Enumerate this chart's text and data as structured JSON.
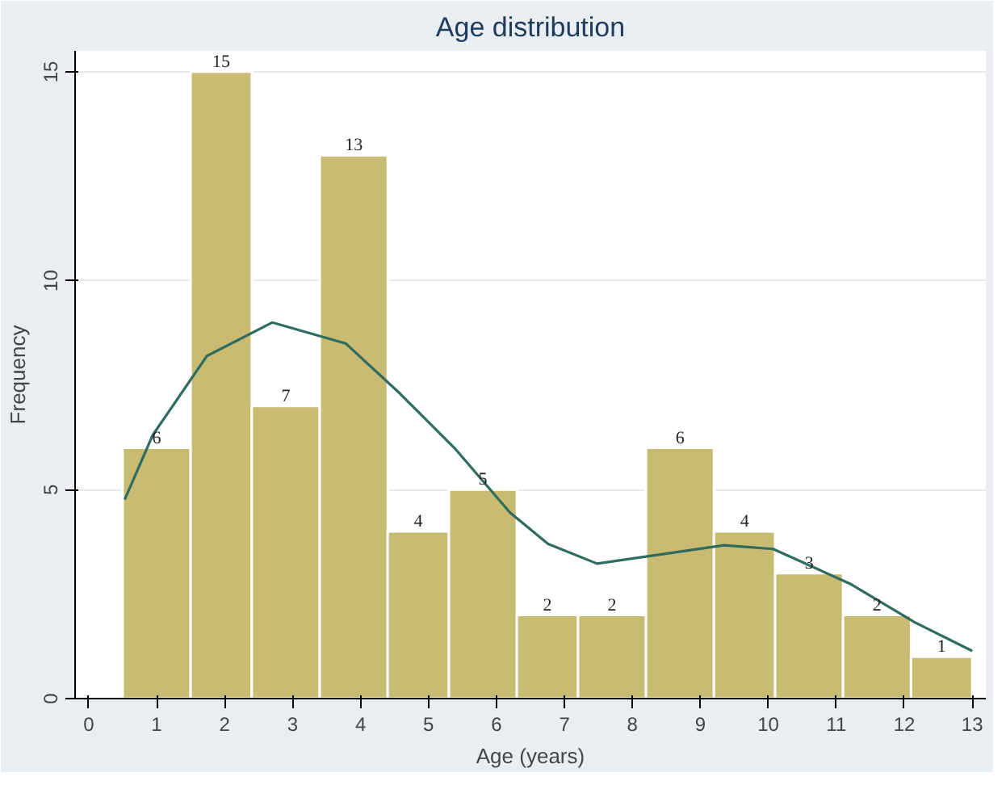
{
  "chart_data": {
    "type": "histogram",
    "title": "Age distribution",
    "xlabel": "Age (years)",
    "ylabel": "Frequency",
    "bins": [
      0.5,
      1.5,
      2.4,
      3.4,
      4.4,
      5.3,
      6.3,
      7.2,
      8.2,
      9.2,
      10.1,
      11.1,
      12.1,
      13.0
    ],
    "values": [
      6,
      15,
      7,
      13,
      4,
      5,
      2,
      2,
      6,
      4,
      3,
      2,
      1
    ],
    "color": "#c9bb72",
    "value_labels": [
      "6",
      "15",
      "7",
      "13",
      "4",
      "5",
      "2",
      "2",
      "6",
      "4",
      "3",
      "2",
      "1"
    ],
    "series": [
      {
        "type": "line",
        "color": "#2f6b5f",
        "x": [
          0.53,
          0.94,
          1.74,
          2.7,
          3.78,
          4.58,
          5.38,
          6.2,
          6.76,
          7.48,
          8.2,
          9.35,
          10.07,
          11.2,
          12.15,
          13.0
        ],
        "values": [
          4.76,
          6.3,
          8.2,
          9.0,
          8.5,
          7.3,
          6.0,
          4.45,
          3.7,
          3.23,
          3.4,
          3.67,
          3.58,
          2.75,
          1.83,
          1.14
        ]
      }
    ],
    "xlim": [
      -0.2,
      13.2
    ],
    "ylim": [
      0,
      15.5
    ],
    "xticks": [
      0,
      1,
      2,
      3,
      4,
      5,
      6,
      7,
      8,
      9,
      10,
      11,
      12,
      13
    ],
    "yticks": [
      0,
      5,
      10,
      15
    ],
    "grid": "y"
  }
}
